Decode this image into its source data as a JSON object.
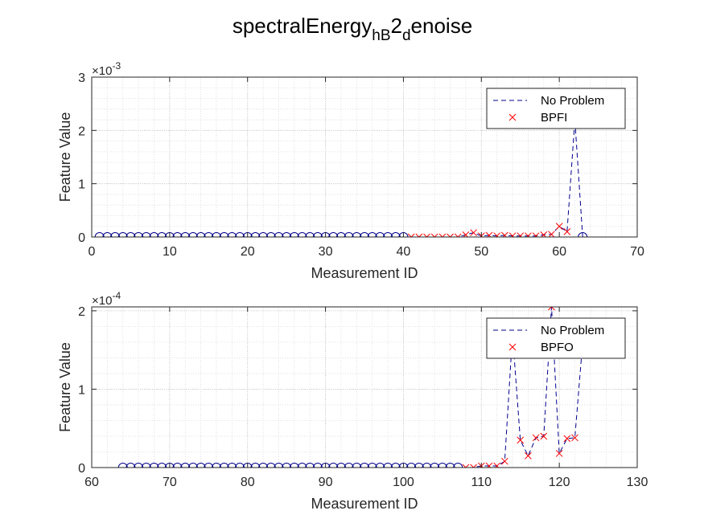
{
  "title": {
    "base": "spectralEnergy",
    "sub1": "hB",
    "mid": "2",
    "sub2": "d",
    "tail": "enoise"
  },
  "colors": {
    "series_no_problem": "#00008b",
    "series_fault": "#ff0000",
    "axis": "#262626",
    "grid": "#d9d9d9"
  },
  "chart_data": [
    {
      "type": "line",
      "xlabel": "Measurement ID",
      "ylabel": "Feature Value",
      "exponent_mult": "×10",
      "exponent_pow": "-3",
      "xlim": [
        0,
        70
      ],
      "ylim": [
        0,
        0.003
      ],
      "xticks": [
        0,
        10,
        20,
        30,
        40,
        50,
        60,
        70
      ],
      "yticks": [
        0,
        0.001,
        0.002,
        0.003
      ],
      "ytick_labels": [
        "0",
        "1",
        "2",
        "3"
      ],
      "grid": true,
      "legend_position": "top-right",
      "series": [
        {
          "name": "No Problem",
          "style": "dashed-line-with-circle-markers",
          "x": [
            1,
            2,
            3,
            4,
            5,
            6,
            7,
            8,
            9,
            10,
            11,
            12,
            13,
            14,
            15,
            16,
            17,
            18,
            19,
            20,
            21,
            22,
            23,
            24,
            25,
            26,
            27,
            28,
            29,
            30,
            31,
            32,
            33,
            34,
            35,
            36,
            37,
            38,
            39,
            40,
            41,
            42,
            43,
            44,
            45,
            46,
            47,
            48,
            49,
            50,
            51,
            52,
            53,
            54,
            55,
            56,
            57,
            58,
            59,
            60,
            61,
            62,
            63
          ],
          "y": [
            0,
            0,
            0,
            0,
            0,
            0,
            0,
            0,
            0,
            0,
            0,
            0,
            0,
            0,
            0,
            0,
            0,
            0,
            0,
            0,
            0,
            0,
            0,
            0,
            0,
            0,
            0,
            0,
            0,
            0,
            0,
            0,
            0,
            0,
            0,
            0,
            0,
            0,
            0,
            0,
            0,
            0,
            0,
            0,
            0,
            0,
            0,
            4e-05,
            8e-05,
            2e-05,
            3e-05,
            2e-05,
            3e-05,
            2e-05,
            2e-05,
            2e-05,
            2e-05,
            4e-05,
            5e-05,
            0.0002,
            0.0001,
            0.0022,
            0
          ],
          "markers_x": [
            1,
            2,
            3,
            4,
            5,
            6,
            7,
            8,
            9,
            10,
            11,
            12,
            13,
            14,
            15,
            16,
            17,
            18,
            19,
            20,
            21,
            22,
            23,
            24,
            25,
            26,
            27,
            28,
            29,
            30,
            31,
            32,
            33,
            34,
            35,
            36,
            37,
            38,
            39,
            40,
            63
          ]
        },
        {
          "name": "BPFI",
          "style": "x-markers",
          "x": [
            41,
            42,
            43,
            44,
            45,
            46,
            47,
            48,
            49,
            50,
            51,
            52,
            53,
            54,
            55,
            56,
            57,
            58,
            59,
            60,
            61
          ],
          "y": [
            0,
            0,
            0,
            0,
            0,
            0,
            0,
            4e-05,
            8e-05,
            2e-05,
            3e-05,
            2e-05,
            3e-05,
            2e-05,
            2e-05,
            2e-05,
            2e-05,
            4e-05,
            5e-05,
            0.0002,
            0.0001
          ]
        }
      ]
    },
    {
      "type": "line",
      "xlabel": "Measurement ID",
      "ylabel": "Feature Value",
      "exponent_mult": "×10",
      "exponent_pow": "-4",
      "xlim": [
        60,
        130
      ],
      "ylim": [
        0,
        0.000205
      ],
      "xticks": [
        60,
        70,
        80,
        90,
        100,
        110,
        120,
        130
      ],
      "yticks": [
        0,
        0.0001,
        0.0002
      ],
      "ytick_labels": [
        "0",
        "1",
        "2"
      ],
      "grid": true,
      "legend_position": "top-right",
      "series": [
        {
          "name": "No Problem",
          "style": "dashed-line-with-circle-markers",
          "x": [
            64,
            65,
            66,
            67,
            68,
            69,
            70,
            71,
            72,
            73,
            74,
            75,
            76,
            77,
            78,
            79,
            80,
            81,
            82,
            83,
            84,
            85,
            86,
            87,
            88,
            89,
            90,
            91,
            92,
            93,
            94,
            95,
            96,
            97,
            98,
            99,
            100,
            101,
            102,
            103,
            104,
            105,
            106,
            107,
            108,
            109,
            110,
            111,
            112,
            113,
            114,
            115,
            116,
            117,
            118,
            119,
            120,
            121,
            122,
            123
          ],
          "y": [
            0,
            0,
            0,
            0,
            0,
            0,
            0,
            0,
            0,
            0,
            0,
            0,
            0,
            0,
            0,
            0,
            0,
            0,
            0,
            0,
            0,
            0,
            0,
            0,
            0,
            0,
            0,
            0,
            0,
            0,
            0,
            0,
            0,
            0,
            0,
            0,
            0,
            0,
            0,
            0,
            0,
            0,
            0,
            0,
            0,
            0,
            2e-06,
            2e-06,
            2e-06,
            8e-06,
            0.00017,
            3.5e-05,
            1.5e-05,
            3.8e-05,
            4e-05,
            0.000205,
            1.8e-05,
            3.7e-05,
            3.8e-05,
            0.00016
          ],
          "markers_x": [
            64,
            65,
            66,
            67,
            68,
            69,
            70,
            71,
            72,
            73,
            74,
            75,
            76,
            77,
            78,
            79,
            80,
            81,
            82,
            83,
            84,
            85,
            86,
            87,
            88,
            89,
            90,
            91,
            92,
            93,
            94,
            95,
            96,
            97,
            98,
            99,
            100,
            101,
            102,
            103,
            104,
            105,
            106,
            107
          ]
        },
        {
          "name": "BPFO",
          "style": "x-markers",
          "x": [
            108,
            109,
            110,
            111,
            112,
            113,
            115,
            116,
            117,
            118,
            119,
            120,
            121,
            122
          ],
          "y": [
            0,
            0,
            2e-06,
            2e-06,
            2e-06,
            8e-06,
            3.5e-05,
            1.5e-05,
            3.8e-05,
            4e-05,
            0.000205,
            1.8e-05,
            3.7e-05,
            3.8e-05
          ]
        }
      ]
    }
  ]
}
